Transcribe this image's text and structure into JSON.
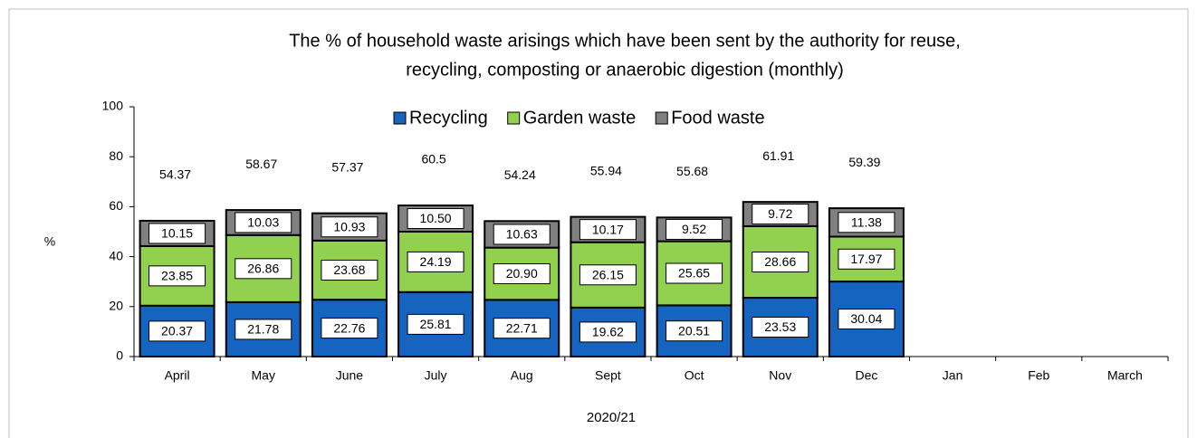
{
  "chart_data": {
    "type": "stacked_bar",
    "title": [
      "The % of household waste arisings which have been sent by the authority for reuse,",
      "recycling, composting or anaerobic digestion (monthly)"
    ],
    "y_label": "%",
    "x_label": "2020/21",
    "categories": [
      "April",
      "May",
      "June",
      "July",
      "Aug",
      "Sept",
      "Oct",
      "Nov",
      "Dec",
      "Jan",
      "Feb",
      "March"
    ],
    "series": [
      {
        "name": "Recycling",
        "color": "#1464c0",
        "values": [
          20.37,
          21.78,
          22.76,
          25.81,
          22.71,
          19.62,
          20.51,
          23.53,
          30.04,
          null,
          null,
          null
        ]
      },
      {
        "name": "Garden waste",
        "color": "#92d050",
        "values": [
          23.85,
          26.86,
          23.68,
          24.19,
          20.9,
          26.15,
          25.65,
          28.66,
          17.97,
          null,
          null,
          null
        ],
        "value_labels": [
          "23.85",
          "26.86",
          "23.68",
          "24.19",
          "20.90",
          "26.15",
          "25.65",
          "28.66",
          "17.97",
          null,
          null,
          null
        ]
      },
      {
        "name": "Food waste",
        "color": "#808080",
        "values": [
          10.15,
          10.03,
          10.93,
          10.5,
          10.63,
          10.17,
          9.52,
          9.72,
          11.38,
          null,
          null,
          null
        ],
        "value_labels": [
          "10.15",
          "10.03",
          "10.93",
          "10.50",
          "10.63",
          "10.17",
          "9.52",
          "9.72",
          "11.38",
          null,
          null,
          null
        ]
      }
    ],
    "totals": [
      54.37,
      58.67,
      57.37,
      60.5,
      54.24,
      55.94,
      55.68,
      61.91,
      59.39,
      null,
      null,
      null
    ],
    "ylim": [
      0,
      100
    ],
    "yticks": [
      0,
      20,
      40,
      60,
      80,
      100
    ],
    "legend": "top"
  }
}
